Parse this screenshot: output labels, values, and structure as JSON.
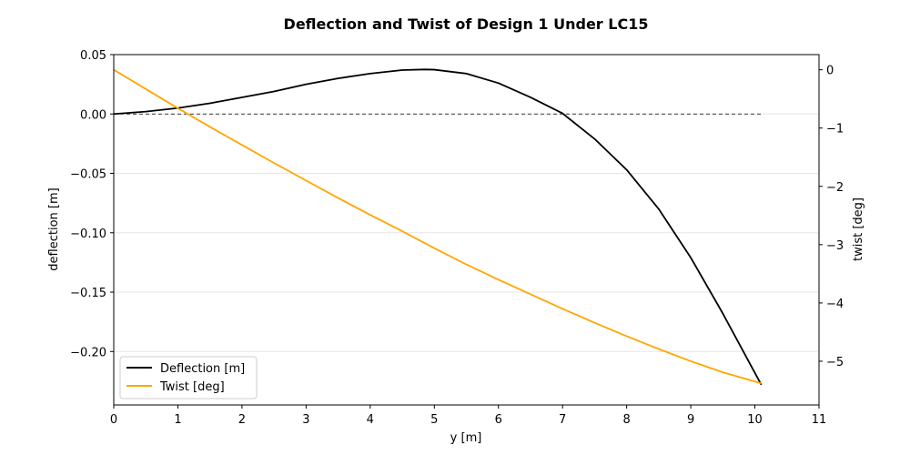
{
  "chart_data": {
    "type": "line",
    "title": "Deflection and Twist of Design 1 Under LC15",
    "xlabel": "y [m]",
    "ylabel": "deflection [m]",
    "y2label": "twist [deg]",
    "xlim": [
      0,
      11
    ],
    "ylim": [
      -0.245,
      0.05
    ],
    "y2lim": [
      -5.75,
      0.26
    ],
    "x_ticks": [
      0,
      1,
      2,
      3,
      4,
      5,
      6,
      7,
      8,
      9,
      10,
      11
    ],
    "y_ticks": [
      0.05,
      0.0,
      -0.05,
      -0.1,
      -0.15,
      -0.2
    ],
    "y_tick_labels": [
      "0.05",
      "0.00",
      "−0.05",
      "−0.10",
      "−0.15",
      "−0.20"
    ],
    "y2_ticks": [
      0,
      -1,
      -2,
      -3,
      -4,
      -5
    ],
    "y2_tick_labels": [
      "0",
      "−1",
      "−2",
      "−3",
      "−4",
      "−5"
    ],
    "grid": "horizontal",
    "zero_line": {
      "style": "dashed",
      "x_range": [
        0,
        10.1
      ],
      "y": 0
    },
    "legend": {
      "placement": "lower-left",
      "entries": [
        "Deflection [m]",
        "Twist [deg]"
      ]
    },
    "series": [
      {
        "name": "Deflection [m]",
        "axis": "left",
        "color": "#000000",
        "x": [
          0,
          0.5,
          1.0,
          1.5,
          2.0,
          2.5,
          3.0,
          3.5,
          4.0,
          4.5,
          4.85,
          5.0,
          5.5,
          6.0,
          6.5,
          7.0,
          7.5,
          8.0,
          8.5,
          9.0,
          9.5,
          10.1
        ],
        "y": [
          0.0,
          0.002,
          0.005,
          0.009,
          0.014,
          0.019,
          0.025,
          0.03,
          0.034,
          0.037,
          0.0375,
          0.0373,
          0.034,
          0.026,
          0.014,
          0.0005,
          -0.021,
          -0.047,
          -0.08,
          -0.121,
          -0.168,
          -0.228
        ]
      },
      {
        "name": "Twist [deg]",
        "axis": "right",
        "color": "#ffa500",
        "x": [
          0,
          0.5,
          1.0,
          1.5,
          2.0,
          2.5,
          3.0,
          3.5,
          4.0,
          4.5,
          5.0,
          5.5,
          6.0,
          6.5,
          7.0,
          7.5,
          8.0,
          8.5,
          9.0,
          9.5,
          10.1
        ],
        "y": [
          0.0,
          -0.33,
          -0.66,
          -0.98,
          -1.29,
          -1.6,
          -1.9,
          -2.2,
          -2.49,
          -2.77,
          -3.06,
          -3.34,
          -3.6,
          -3.85,
          -4.1,
          -4.34,
          -4.57,
          -4.79,
          -5.0,
          -5.19,
          -5.38
        ]
      }
    ]
  }
}
